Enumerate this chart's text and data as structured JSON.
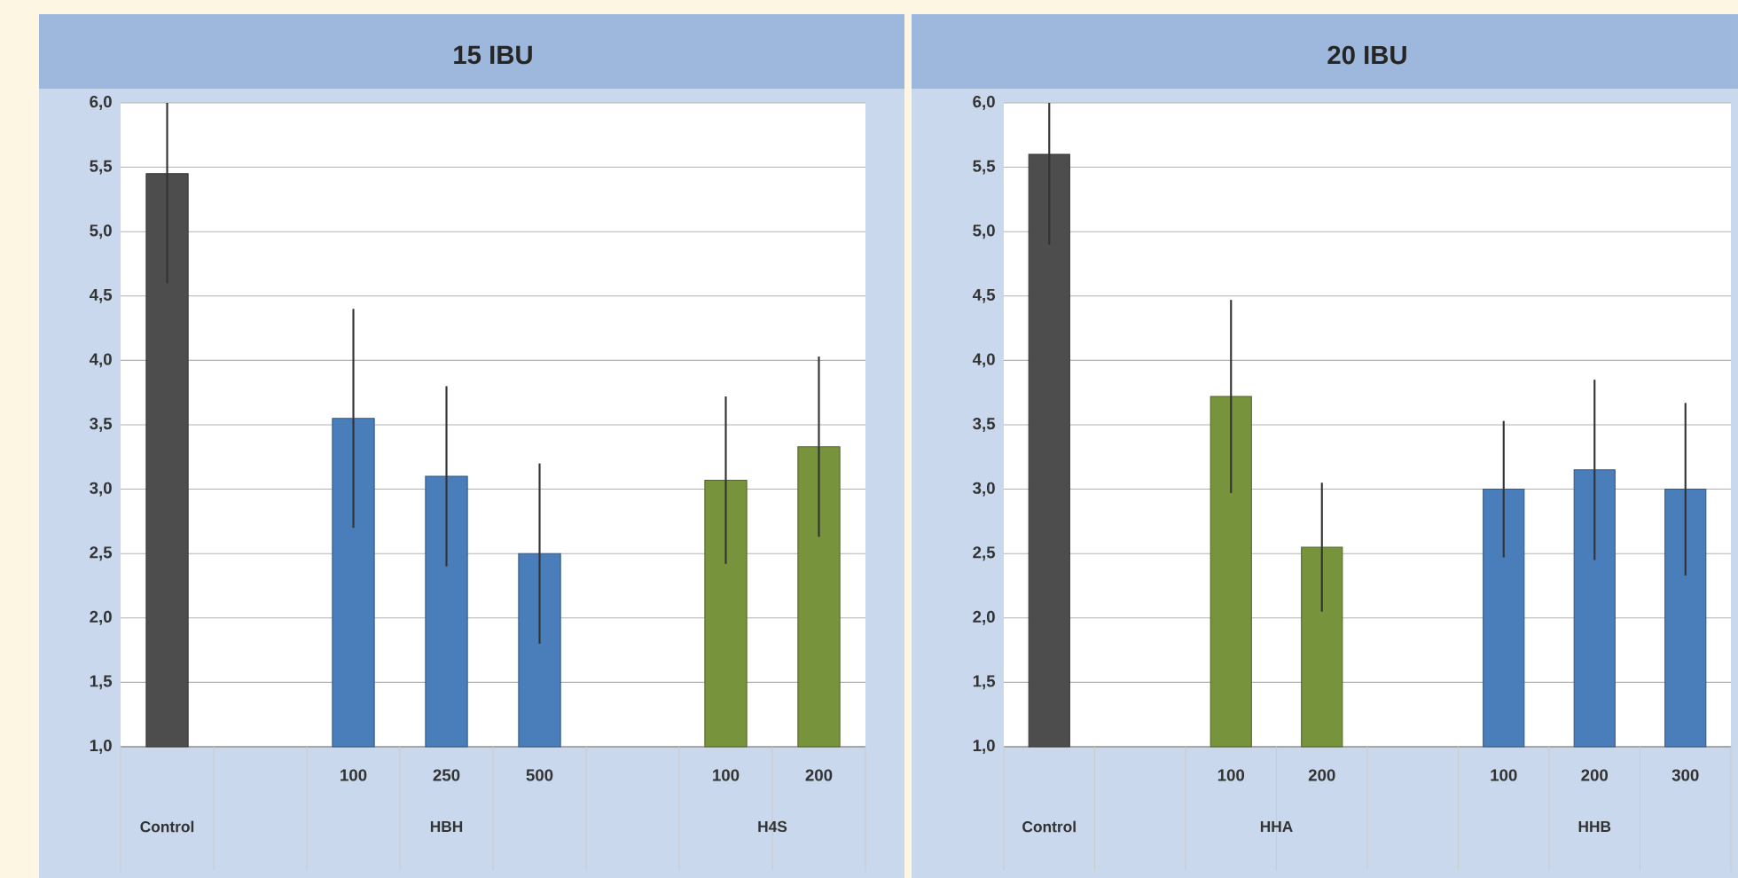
{
  "chart_data": [
    {
      "type": "bar",
      "title": "15 IBU",
      "categories": [
        null,
        null,
        "100",
        "250",
        "500",
        null,
        "100",
        "200"
      ],
      "values": [
        5.45,
        null,
        3.55,
        3.1,
        2.5,
        null,
        3.07,
        3.33
      ],
      "errors": [
        [
          4.6,
          6.0
        ],
        null,
        0.85,
        0.7,
        0.7,
        null,
        0.65,
        0.7
      ],
      "colors": [
        "#4d4d4d",
        "#4d4d4d",
        "#4a7ebb",
        "#4a7ebb",
        "#4a7ebb",
        "#77933c",
        "#77933c",
        "#77933c"
      ],
      "ylim": [
        1,
        6
      ],
      "yticks": [
        {
          "value": 1,
          "label": "1,0"
        },
        {
          "value": 1.5,
          "label": "1,5"
        },
        {
          "value": 2,
          "label": "2,0"
        },
        {
          "value": 2.5,
          "label": "2,5"
        },
        {
          "value": 3,
          "label": "3,0"
        },
        {
          "value": 3.5,
          "label": "3,5"
        },
        {
          "value": 4,
          "label": "4,0"
        },
        {
          "value": 4.5,
          "label": "4,5"
        },
        {
          "value": 5,
          "label": "5,0"
        },
        {
          "value": 5.5,
          "label": "5,5"
        },
        {
          "value": 6,
          "label": "6,0"
        }
      ],
      "grid": "y",
      "annotations": [
        "Control",
        "HBH",
        "H4S"
      ]
    },
    {
      "type": "bar",
      "title": "20 IBU",
      "categories": [
        null,
        null,
        "100",
        "200",
        null,
        "100",
        "200",
        "300"
      ],
      "values": [
        5.6,
        null,
        3.72,
        2.55,
        null,
        3.0,
        3.15,
        3.0
      ],
      "errors": [
        [
          4.9,
          6.0
        ],
        null,
        0.75,
        0.5,
        null,
        0.53,
        0.7,
        0.67
      ],
      "colors": [
        "#4d4d4d",
        "#4d4d4d",
        "#77933c",
        "#77933c",
        "#4a7ebb",
        "#4a7ebb",
        "#4a7ebb",
        "#4a7ebb"
      ],
      "ylim": [
        1,
        6
      ],
      "yticks": [
        {
          "value": 1,
          "label": "1,0"
        },
        {
          "value": 1.5,
          "label": "1,5"
        },
        {
          "value": 2,
          "label": "2,0"
        },
        {
          "value": 2.5,
          "label": "2,5"
        },
        {
          "value": 3,
          "label": "3,0"
        },
        {
          "value": 3.5,
          "label": "3,5"
        },
        {
          "value": 4,
          "label": "4,0"
        },
        {
          "value": 4.5,
          "label": "4,5"
        },
        {
          "value": 5,
          "label": "5,0"
        },
        {
          "value": 5.5,
          "label": "5,5"
        },
        {
          "value": 6,
          "label": "6,0"
        }
      ],
      "grid": "y",
      "annotations": [
        "Control",
        "HHA",
        "HHB"
      ]
    }
  ]
}
